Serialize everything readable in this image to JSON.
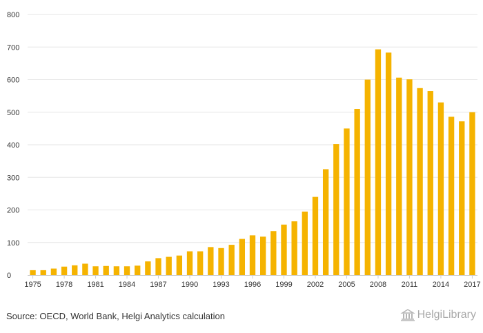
{
  "chart_data": {
    "type": "bar",
    "categories": [
      "1975",
      "1976",
      "1977",
      "1978",
      "1979",
      "1980",
      "1981",
      "1982",
      "1983",
      "1984",
      "1985",
      "1986",
      "1987",
      "1988",
      "1989",
      "1990",
      "1991",
      "1992",
      "1993",
      "1994",
      "1995",
      "1996",
      "1997",
      "1998",
      "1999",
      "2000",
      "2001",
      "2002",
      "2003",
      "2004",
      "2005",
      "2006",
      "2007",
      "2008",
      "2009",
      "2010",
      "2011",
      "2012",
      "2013",
      "2014",
      "2015",
      "2016",
      "2017"
    ],
    "values": [
      15,
      15,
      20,
      26,
      30,
      35,
      27,
      28,
      27,
      27,
      29,
      42,
      52,
      56,
      60,
      73,
      73,
      86,
      83,
      93,
      111,
      122,
      118,
      135,
      155,
      165,
      195,
      240,
      325,
      402,
      450,
      510,
      600,
      693,
      683,
      606,
      601,
      574,
      565,
      530,
      486,
      472,
      500
    ],
    "tick_labels": [
      "1975",
      "1978",
      "1981",
      "1984",
      "1987",
      "1990",
      "1993",
      "1996",
      "1999",
      "2002",
      "2005",
      "2008",
      "2011",
      "2014",
      "2017"
    ],
    "yticks": [
      0,
      100,
      200,
      300,
      400,
      500,
      600,
      700,
      800
    ],
    "ylim": [
      0,
      800
    ],
    "title": "",
    "xlabel": "",
    "ylabel": "",
    "grid": true,
    "bar_color": "#f5b300"
  },
  "footer": {
    "source": "Source: OECD, World Bank, Helgi Analytics calculation",
    "logo_text": "HelgiLibrary"
  }
}
